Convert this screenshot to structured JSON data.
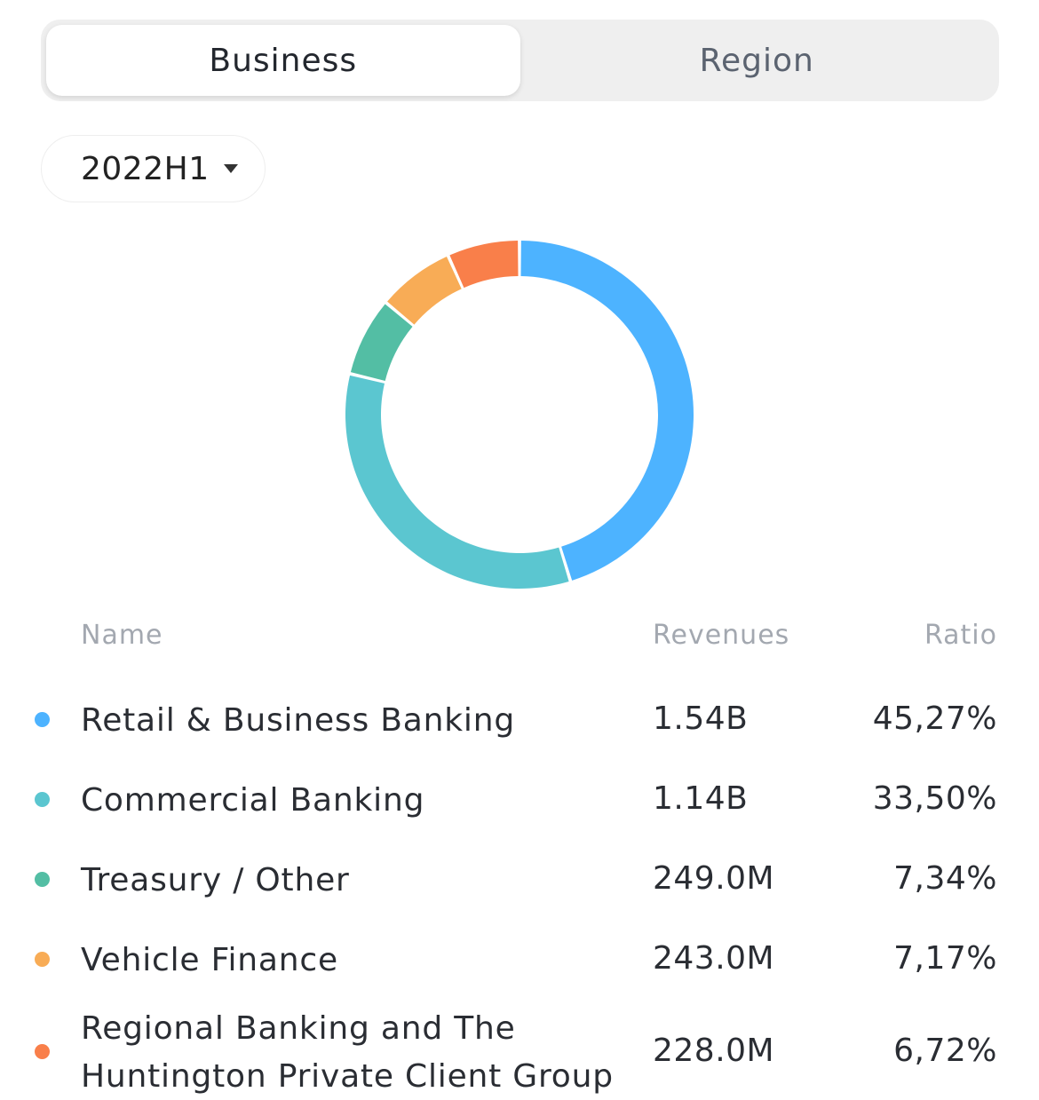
{
  "tabs": [
    {
      "label": "Business",
      "active": true
    },
    {
      "label": "Region",
      "active": false
    }
  ],
  "period": {
    "selected": "2022H1"
  },
  "legend_header": {
    "name": "Name",
    "revenues": "Revenues",
    "ratio": "Ratio"
  },
  "rows": [
    {
      "name": "Retail & Business Banking",
      "revenue": "1.54B",
      "ratio": "45,27%",
      "color": "#4db3ff"
    },
    {
      "name": "Commercial Banking",
      "revenue": "1.14B",
      "ratio": "33,50%",
      "color": "#5bc6d0"
    },
    {
      "name": "Treasury / Other",
      "revenue": "249.0M",
      "ratio": "7,34%",
      "color": "#53bea4"
    },
    {
      "name": "Vehicle Finance",
      "revenue": "243.0M",
      "ratio": "7,17%",
      "color": "#f8ac56"
    },
    {
      "name": "Regional Banking and The Huntington Private Client Group",
      "revenue": "228.0M",
      "ratio": "6,72%",
      "color": "#f97f4a"
    }
  ],
  "chart_data": {
    "type": "pie",
    "categories": [
      "Retail & Business Banking",
      "Commercial Banking",
      "Treasury / Other",
      "Vehicle Finance",
      "Regional Banking and The Huntington Private Client Group"
    ],
    "values": [
      45.27,
      33.5,
      7.34,
      7.17,
      6.72
    ],
    "colors": [
      "#4db3ff",
      "#5bc6d0",
      "#53bea4",
      "#f8ac56",
      "#f97f4a"
    ],
    "donut": true
  }
}
